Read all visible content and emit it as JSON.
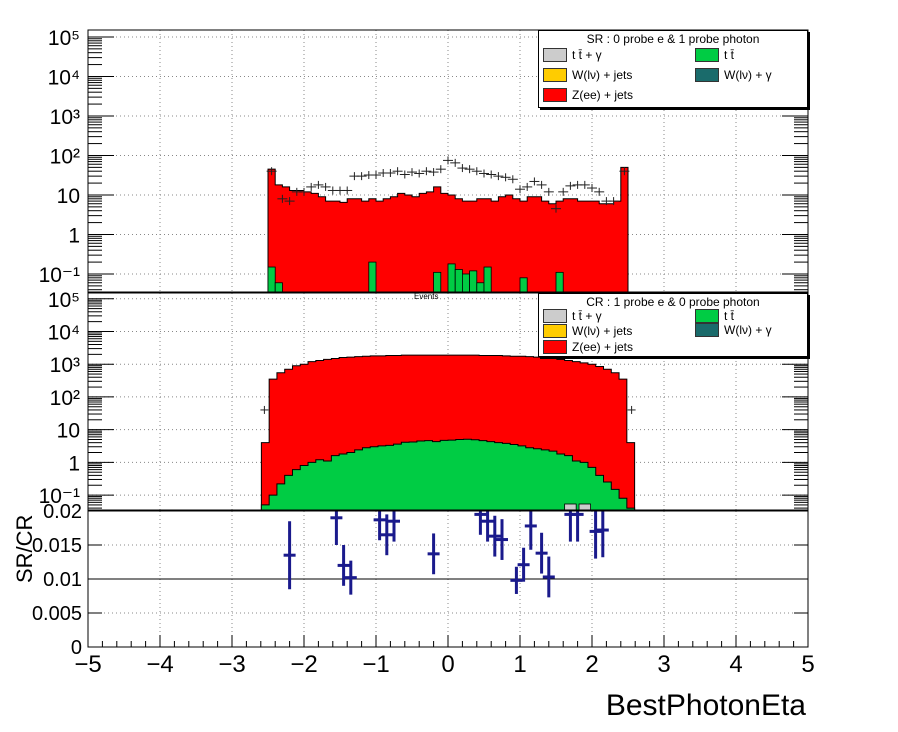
{
  "chart_data": [
    {
      "type": "stacked-histogram-log",
      "panel": "SR",
      "legend": {
        "header": "SR : 0 probe e & 1 probe photon",
        "entries": [
          {
            "label": "t t̄ + γ",
            "color": "#cccccc"
          },
          {
            "label": "t t̄",
            "color": "#00cc44"
          },
          {
            "label": "W(lν) + jets",
            "color": "#ffcc00"
          },
          {
            "label": "W(lν) + γ",
            "color": "#1a6b6b"
          },
          {
            "label": "Z(ee) + jets",
            "color": "#ff0000"
          }
        ]
      },
      "ylim": [
        0.035,
        150000
      ],
      "yscale": "log",
      "y_tick_labels": [
        "10⁻¹",
        "1",
        "10",
        "10²",
        "10³",
        "10⁴",
        "10⁵"
      ],
      "y_tick_values": [
        0.1,
        1,
        10,
        100,
        1000,
        10000,
        100000
      ],
      "bin_edges_range": [
        -2.5,
        2.5
      ],
      "zjets": [
        45,
        18,
        16,
        13,
        13,
        12,
        11,
        9,
        7,
        7,
        6.5,
        8,
        8,
        7,
        8,
        7,
        8,
        9,
        11,
        10,
        9,
        11,
        12,
        16,
        11,
        10,
        8,
        7,
        7,
        8,
        8,
        7,
        9,
        10,
        8,
        7,
        9,
        9,
        7,
        6,
        7,
        8,
        8,
        7,
        7,
        7,
        6,
        6,
        7,
        50
      ],
      "ttbar": [
        0.15,
        0.06,
        0,
        0,
        0,
        0,
        0,
        0,
        0,
        0,
        0,
        0,
        0,
        0,
        0.2,
        0,
        0,
        0,
        0,
        0,
        0,
        0,
        0,
        0.11,
        0,
        0.18,
        0.13,
        0.1,
        0.12,
        0.06,
        0.15,
        0,
        0,
        0,
        0,
        0.08,
        0,
        0,
        0,
        0,
        0.11,
        0,
        0,
        0,
        0,
        0,
        0,
        0,
        0,
        0
      ],
      "data_points": [
        {
          "x": -2.45,
          "y": 40
        },
        {
          "x": -2.3,
          "y": 8
        },
        {
          "x": -2.2,
          "y": 7
        },
        {
          "x": -2.1,
          "y": 12
        },
        {
          "x": -2.0,
          "y": 12
        },
        {
          "x": -1.9,
          "y": 16
        },
        {
          "x": -1.8,
          "y": 18
        },
        {
          "x": -1.7,
          "y": 16
        },
        {
          "x": -1.6,
          "y": 13
        },
        {
          "x": -1.5,
          "y": 13
        },
        {
          "x": -1.4,
          "y": 13
        },
        {
          "x": -1.3,
          "y": 30
        },
        {
          "x": -1.2,
          "y": 30
        },
        {
          "x": -1.1,
          "y": 32
        },
        {
          "x": -1.0,
          "y": 32
        },
        {
          "x": -0.9,
          "y": 36
        },
        {
          "x": -0.8,
          "y": 36
        },
        {
          "x": -0.7,
          "y": 40
        },
        {
          "x": -0.6,
          "y": 33
        },
        {
          "x": -0.5,
          "y": 38
        },
        {
          "x": -0.4,
          "y": 35
        },
        {
          "x": -0.3,
          "y": 40
        },
        {
          "x": -0.2,
          "y": 38
        },
        {
          "x": -0.1,
          "y": 45
        },
        {
          "x": 0.0,
          "y": 75
        },
        {
          "x": 0.1,
          "y": 65
        },
        {
          "x": 0.2,
          "y": 48
        },
        {
          "x": 0.3,
          "y": 45
        },
        {
          "x": 0.4,
          "y": 40
        },
        {
          "x": 0.5,
          "y": 35
        },
        {
          "x": 0.6,
          "y": 33
        },
        {
          "x": 0.7,
          "y": 30
        },
        {
          "x": 0.8,
          "y": 28
        },
        {
          "x": 0.9,
          "y": 25
        },
        {
          "x": 1.0,
          "y": 14
        },
        {
          "x": 1.1,
          "y": 16
        },
        {
          "x": 1.2,
          "y": 22
        },
        {
          "x": 1.3,
          "y": 18
        },
        {
          "x": 1.4,
          "y": 12
        },
        {
          "x": 1.5,
          "y": 4.5
        },
        {
          "x": 1.6,
          "y": 12
        },
        {
          "x": 1.7,
          "y": 17
        },
        {
          "x": 1.8,
          "y": 18
        },
        {
          "x": 1.9,
          "y": 18
        },
        {
          "x": 2.0,
          "y": 15
        },
        {
          "x": 2.1,
          "y": 12
        },
        {
          "x": 2.2,
          "y": 7
        },
        {
          "x": 2.3,
          "y": 7
        },
        {
          "x": 2.45,
          "y": 40
        }
      ]
    },
    {
      "type": "stacked-histogram-log",
      "panel": "CR",
      "events_label": "Events",
      "legend": {
        "header": "CR : 1 probe e & 0 probe photon",
        "entries": [
          {
            "label": "t t̄ + γ",
            "color": "#cccccc"
          },
          {
            "label": "t t̄",
            "color": "#00cc44"
          },
          {
            "label": "W(lν) + jets",
            "color": "#ffcc00"
          },
          {
            "label": "W(lν) + γ",
            "color": "#1a6b6b"
          },
          {
            "label": "Z(ee) + jets",
            "color": "#ff0000"
          }
        ]
      },
      "ylim": [
        0.035,
        150000
      ],
      "yscale": "log",
      "y_tick_labels": [
        "10⁻¹",
        "1",
        "10",
        "10²",
        "10³",
        "10⁴",
        "10⁵"
      ],
      "y_tick_values": [
        0.1,
        1,
        10,
        100,
        1000,
        10000,
        100000
      ],
      "bin_edges_range": [
        -2.7,
        2.7
      ],
      "zjets": [
        0.02,
        4,
        350,
        550,
        700,
        900,
        1000,
        1200,
        1300,
        1400,
        1500,
        1600,
        1650,
        1700,
        1750,
        1800,
        1800,
        1850,
        1850,
        1900,
        1900,
        1900,
        1900,
        1900,
        1900,
        1900,
        1900,
        1900,
        1900,
        1850,
        1850,
        1850,
        1800,
        1750,
        1750,
        1700,
        1650,
        1600,
        1500,
        1400,
        1300,
        1200,
        1100,
        1000,
        850,
        700,
        550,
        350,
        4,
        0.02
      ],
      "ttbar": [
        0.02,
        0.05,
        0.1,
        0.22,
        0.4,
        0.6,
        0.8,
        1.0,
        1.2,
        1.1,
        1.6,
        1.8,
        2.0,
        2.4,
        2.8,
        3.0,
        3.2,
        3.3,
        3.6,
        4.1,
        4.2,
        4.5,
        4.6,
        4.3,
        4.7,
        4.8,
        5.0,
        5.1,
        4.9,
        4.6,
        4.3,
        4.0,
        3.8,
        3.5,
        3.2,
        2.8,
        2.6,
        2.4,
        2.2,
        1.8,
        1.6,
        1.1,
        1.0,
        0.7,
        0.4,
        0.25,
        0.15,
        0.08,
        0.04,
        0.02
      ],
      "ttgamma_note": "small grey bins near eta 1.7-1.9"
    },
    {
      "type": "ratio-points",
      "ylabel": "SR/CR",
      "xlabel": "BestPhotonEta",
      "xlim": [
        -5,
        5
      ],
      "ylim": [
        0,
        0.02
      ],
      "x_tick_labels": [
        "−5",
        "−4",
        "−3",
        "−2",
        "−1",
        "0",
        "1",
        "2",
        "3",
        "4",
        "5"
      ],
      "y_tick_labels": [
        "0",
        "0.005",
        "0.01",
        "0.015",
        "0.02"
      ],
      "color": "#1a1a8c",
      "points": [
        {
          "x": -2.2,
          "y": 0.0135,
          "err": 0.005
        },
        {
          "x": -1.55,
          "y": 0.019,
          "err": 0.004
        },
        {
          "x": -1.45,
          "y": 0.012,
          "err": 0.003
        },
        {
          "x": -1.35,
          "y": 0.0102,
          "err": 0.0025
        },
        {
          "x": -0.95,
          "y": 0.0187,
          "err": 0.003
        },
        {
          "x": -0.85,
          "y": 0.0165,
          "err": 0.003
        },
        {
          "x": -0.75,
          "y": 0.0185,
          "err": 0.003
        },
        {
          "x": -0.2,
          "y": 0.0137,
          "err": 0.003
        },
        {
          "x": 0.45,
          "y": 0.0195,
          "err": 0.003
        },
        {
          "x": 0.55,
          "y": 0.0185,
          "err": 0.003
        },
        {
          "x": 0.65,
          "y": 0.0163,
          "err": 0.003
        },
        {
          "x": 0.75,
          "y": 0.0158,
          "err": 0.003
        },
        {
          "x": 0.95,
          "y": 0.0098,
          "err": 0.002
        },
        {
          "x": 1.05,
          "y": 0.0121,
          "err": 0.0025
        },
        {
          "x": 1.15,
          "y": 0.0178,
          "err": 0.0035
        },
        {
          "x": 1.3,
          "y": 0.0138,
          "err": 0.003
        },
        {
          "x": 1.4,
          "y": 0.0103,
          "err": 0.003
        },
        {
          "x": 1.7,
          "y": 0.0195,
          "err": 0.004
        },
        {
          "x": 1.8,
          "y": 0.0195,
          "err": 0.004
        },
        {
          "x": 2.05,
          "y": 0.017,
          "err": 0.004
        },
        {
          "x": 2.15,
          "y": 0.0172,
          "err": 0.004
        }
      ]
    }
  ]
}
